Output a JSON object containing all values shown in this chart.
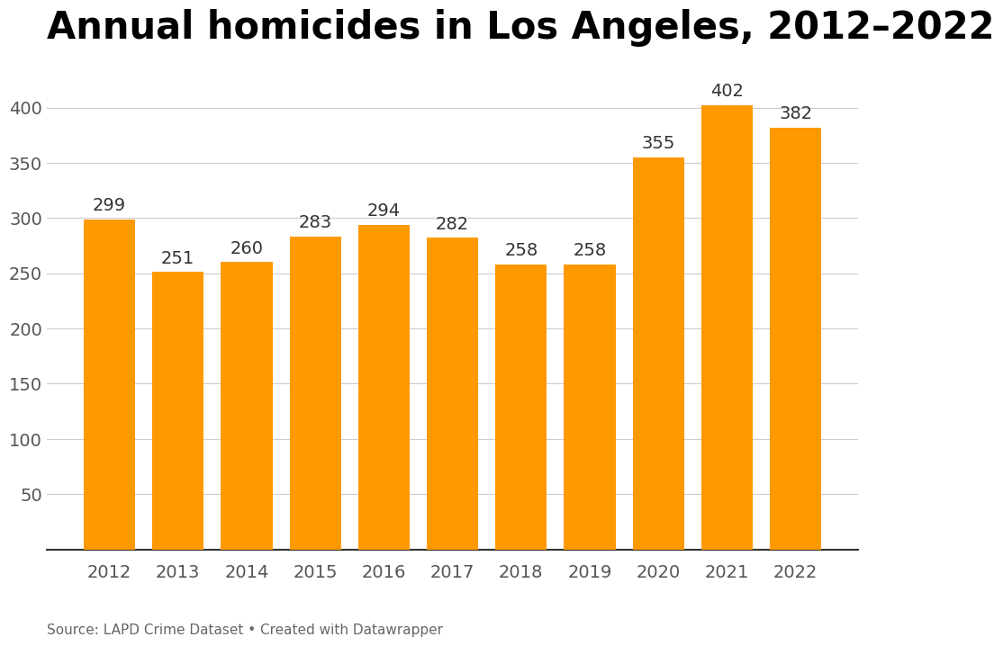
{
  "title": "Annual homicides in Los Angeles, 2012–2022",
  "years": [
    "2012",
    "2013",
    "2014",
    "2015",
    "2016",
    "2017",
    "2018",
    "2019",
    "2020",
    "2021",
    "2022"
  ],
  "values": [
    299,
    251,
    260,
    283,
    294,
    282,
    258,
    258,
    355,
    402,
    382
  ],
  "bar_color": "#FF9900",
  "background_color": "#ffffff",
  "yticks": [
    50,
    100,
    150,
    200,
    250,
    300,
    350,
    400
  ],
  "ylim": [
    0,
    440
  ],
  "source_text": "Source: LAPD Crime Dataset • Created with Datawrapper",
  "title_fontsize": 30,
  "label_fontsize": 14,
  "tick_fontsize": 14,
  "source_fontsize": 11,
  "grid_color": "#cccccc",
  "tick_color": "#555555",
  "title_color": "#000000",
  "label_color": "#333333",
  "bar_width": 0.75
}
